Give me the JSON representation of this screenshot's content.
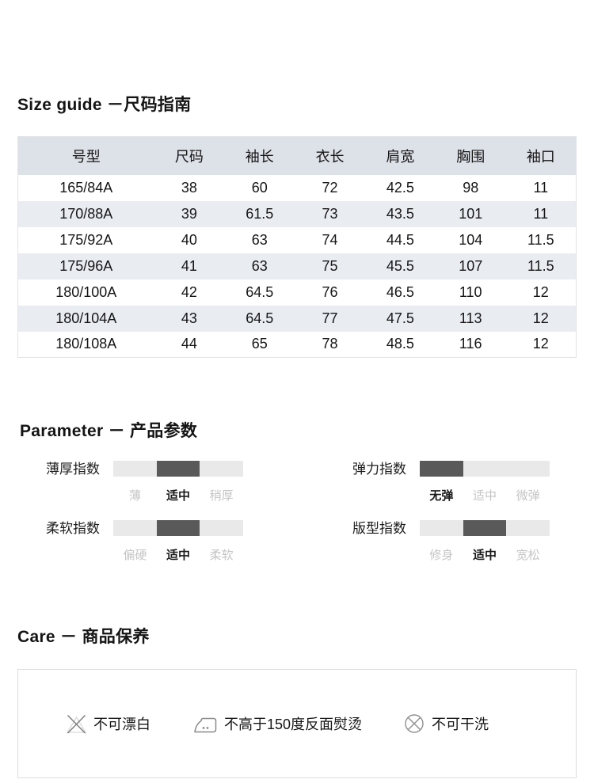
{
  "size_guide": {
    "title": "Size guide －尺码指南",
    "table": {
      "headers": [
        "号型",
        "尺码",
        "袖长",
        "衣长",
        "肩宽",
        "胸围",
        "袖口"
      ],
      "rows": [
        [
          "165/84A",
          "38",
          "60",
          "72",
          "42.5",
          "98",
          "11"
        ],
        [
          "170/88A",
          "39",
          "61.5",
          "73",
          "43.5",
          "101",
          "11"
        ],
        [
          "175/92A",
          "40",
          "63",
          "74",
          "44.5",
          "104",
          "11.5"
        ],
        [
          "175/96A",
          "41",
          "63",
          "75",
          "45.5",
          "107",
          "11.5"
        ],
        [
          "180/100A",
          "42",
          "64.5",
          "76",
          "46.5",
          "110",
          "12"
        ],
        [
          "180/104A",
          "43",
          "64.5",
          "77",
          "47.5",
          "113",
          "12"
        ],
        [
          "180/108A",
          "44",
          "65",
          "78",
          "48.5",
          "116",
          "12"
        ]
      ],
      "header_bg": "#dde1e8",
      "stripe_bg": "#e9ecf1",
      "border_color": "#e1e4e9"
    }
  },
  "parameters": {
    "title": "Parameter － 产品参数",
    "bar_dark": "#595959",
    "bar_light": "#e9e9e9",
    "items": [
      {
        "label": "薄厚指数",
        "options": [
          "薄",
          "适中",
          "稍厚"
        ],
        "selected": 1
      },
      {
        "label": "弹力指数",
        "options": [
          "无弹",
          "适中",
          "微弹"
        ],
        "selected": 0
      },
      {
        "label": "柔软指数",
        "options": [
          "偏硬",
          "适中",
          "柔软"
        ],
        "selected": 1
      },
      {
        "label": "版型指数",
        "options": [
          "修身",
          "适中",
          "宽松"
        ],
        "selected": 1
      }
    ]
  },
  "care": {
    "title": "Care － 商品保养",
    "items": [
      {
        "icon": "do-not-bleach-icon",
        "label": "不可漂白"
      },
      {
        "icon": "iron-max-150-icon",
        "label": "不高于150度反面熨烫"
      },
      {
        "icon": "do-not-dryclean-icon",
        "label": "不可干洗"
      }
    ]
  }
}
